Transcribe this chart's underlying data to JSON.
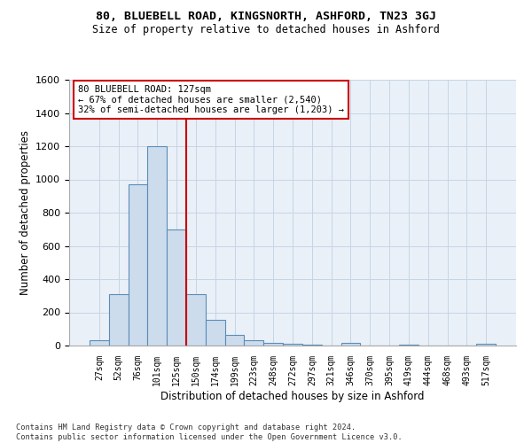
{
  "title1": "80, BLUEBELL ROAD, KINGSNORTH, ASHFORD, TN23 3GJ",
  "title2": "Size of property relative to detached houses in Ashford",
  "xlabel": "Distribution of detached houses by size in Ashford",
  "ylabel": "Number of detached properties",
  "footnote": "Contains HM Land Registry data © Crown copyright and database right 2024.\nContains public sector information licensed under the Open Government Licence v3.0.",
  "bar_labels": [
    "27sqm",
    "52sqm",
    "76sqm",
    "101sqm",
    "125sqm",
    "150sqm",
    "174sqm",
    "199sqm",
    "223sqm",
    "248sqm",
    "272sqm",
    "297sqm",
    "321sqm",
    "346sqm",
    "370sqm",
    "395sqm",
    "419sqm",
    "444sqm",
    "468sqm",
    "493sqm",
    "517sqm"
  ],
  "bar_values": [
    30,
    310,
    970,
    1200,
    700,
    310,
    155,
    65,
    30,
    18,
    10,
    5,
    0,
    15,
    0,
    0,
    5,
    0,
    0,
    0,
    10
  ],
  "bar_color": "#ccdcec",
  "bar_edgecolor": "#5b8db8",
  "grid_color": "#c5d5e5",
  "background_color": "#eaf0f8",
  "annotation_box_text": "80 BLUEBELL ROAD: 127sqm\n← 67% of detached houses are smaller (2,540)\n32% of semi-detached houses are larger (1,203) →",
  "vline_x": 4.5,
  "vline_color": "#cc0000",
  "annotation_box_facecolor": "#ffffff",
  "annotation_box_edgecolor": "#cc0000",
  "ylim": [
    0,
    1600
  ],
  "yticks": [
    0,
    200,
    400,
    600,
    800,
    1000,
    1200,
    1400,
    1600
  ]
}
